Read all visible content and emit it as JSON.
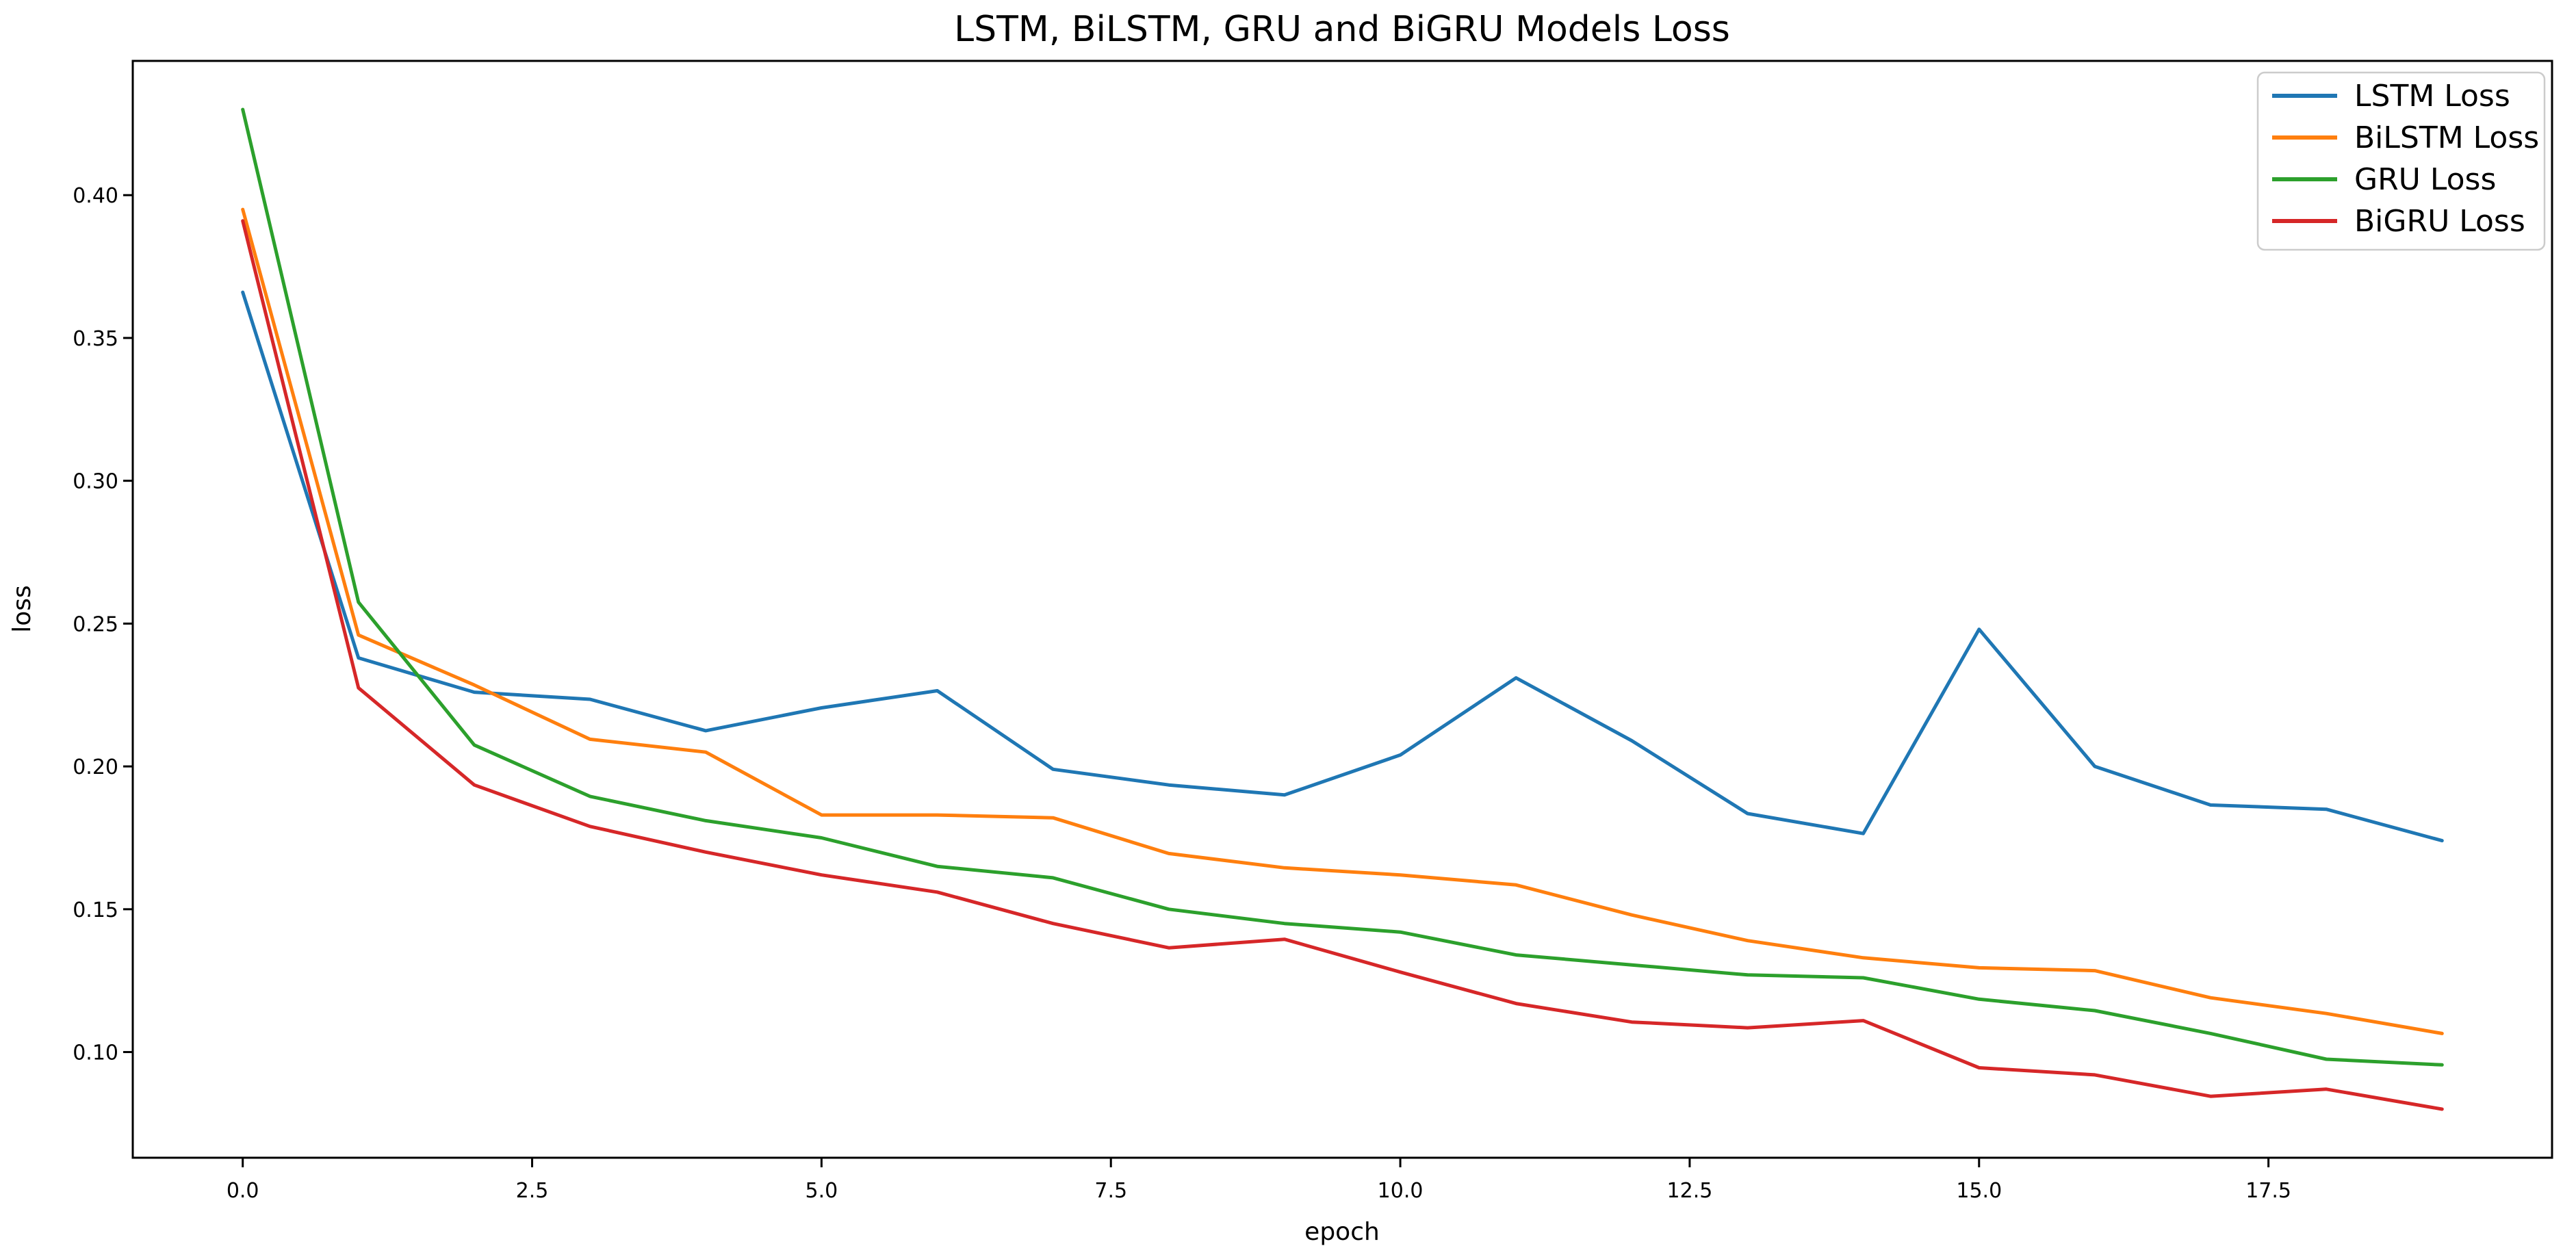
{
  "chart_data": {
    "type": "line",
    "title": "LSTM, BiLSTM, GRU and BiGRU Models Loss",
    "xlabel": "epoch",
    "ylabel": "loss",
    "grid": false,
    "background_color": "#ffffff",
    "spine_color": "#000000",
    "tick_color": "#000000",
    "xlim": [
      -0.95,
      19.95
    ],
    "ylim": [
      0.063,
      0.447
    ],
    "xticks": {
      "values": [
        0,
        2.5,
        5,
        7.5,
        10,
        12.5,
        15,
        17.5
      ],
      "labels": [
        "0.0",
        "2.5",
        "5.0",
        "7.5",
        "10.0",
        "12.5",
        "15.0",
        "17.5"
      ]
    },
    "yticks": {
      "values": [
        0.1,
        0.15,
        0.2,
        0.25,
        0.3,
        0.35,
        0.4
      ],
      "labels": [
        "0.10",
        "0.15",
        "0.20",
        "0.25",
        "0.30",
        "0.35",
        "0.40"
      ]
    },
    "x": [
      0,
      1,
      2,
      3,
      4,
      5,
      6,
      7,
      8,
      9,
      10,
      11,
      12,
      13,
      14,
      15,
      16,
      17,
      18,
      19
    ],
    "series": [
      {
        "name": "LSTM Loss",
        "color": "#1f77b4",
        "values": [
          0.366,
          0.238,
          0.226,
          0.2235,
          0.2125,
          0.2205,
          0.2265,
          0.199,
          0.1935,
          0.19,
          0.204,
          0.231,
          0.209,
          0.1835,
          0.1765,
          0.248,
          0.2,
          0.1865,
          0.185,
          0.174
        ]
      },
      {
        "name": "BiLSTM Loss",
        "color": "#ff7f0e",
        "values": [
          0.395,
          0.246,
          0.2285,
          0.2095,
          0.205,
          0.183,
          0.183,
          0.182,
          0.1695,
          0.1645,
          0.162,
          0.1585,
          0.148,
          0.139,
          0.133,
          0.1295,
          0.1285,
          0.119,
          0.1135,
          0.1065
        ]
      },
      {
        "name": "GRU Loss",
        "color": "#2ca02c",
        "values": [
          0.43,
          0.2575,
          0.2075,
          0.1895,
          0.181,
          0.175,
          0.165,
          0.161,
          0.15,
          0.145,
          0.142,
          0.134,
          0.1305,
          0.127,
          0.126,
          0.1185,
          0.1145,
          0.1065,
          0.0975,
          0.0955
        ]
      },
      {
        "name": "BiGRU Loss",
        "color": "#d62728",
        "values": [
          0.391,
          0.2275,
          0.1935,
          0.179,
          0.17,
          0.162,
          0.156,
          0.145,
          0.1365,
          0.1395,
          0.128,
          0.117,
          0.1105,
          0.1085,
          0.111,
          0.0945,
          0.092,
          0.0845,
          0.087,
          0.08
        ]
      }
    ],
    "legend": {
      "position": "upper right",
      "border_color": "#cccccc",
      "background_color": "#ffffff"
    }
  }
}
